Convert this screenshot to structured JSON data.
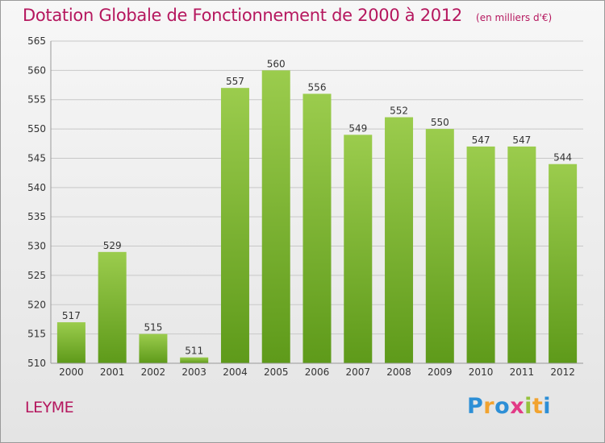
{
  "header": {
    "title": "Dotation Globale de Fonctionnement de 2000 à 2012",
    "unit": "(en milliers d'€)"
  },
  "footer": {
    "commune": "LEYME",
    "logo_text": "Proxiti"
  },
  "colors": {
    "title": "#b5175e",
    "bar_top": "#9bcc4d",
    "bar_bottom": "#5e9a1a",
    "grid": "#c8c8c8",
    "axis_text": "#333333"
  },
  "chart_data": {
    "type": "bar",
    "categories": [
      "2000",
      "2001",
      "2002",
      "2003",
      "2004",
      "2005",
      "2006",
      "2007",
      "2008",
      "2009",
      "2010",
      "2011",
      "2012"
    ],
    "values": [
      517,
      529,
      515,
      511,
      557,
      560,
      556,
      549,
      552,
      550,
      547,
      547,
      544
    ],
    "data_labels": [
      "517",
      "529",
      "515",
      "511",
      "557",
      "560",
      "556",
      "549",
      "552",
      "550",
      "547",
      "547",
      "544"
    ],
    "title": "Dotation Globale de Fonctionnement de 2000 à 2012",
    "unit_label": "(en milliers d'€)",
    "xlabel": "",
    "ylabel": "",
    "ylim": [
      510,
      565
    ],
    "yticks": [
      510,
      515,
      520,
      525,
      530,
      535,
      540,
      545,
      550,
      555,
      560,
      565
    ],
    "grid": true,
    "legend": "none"
  }
}
